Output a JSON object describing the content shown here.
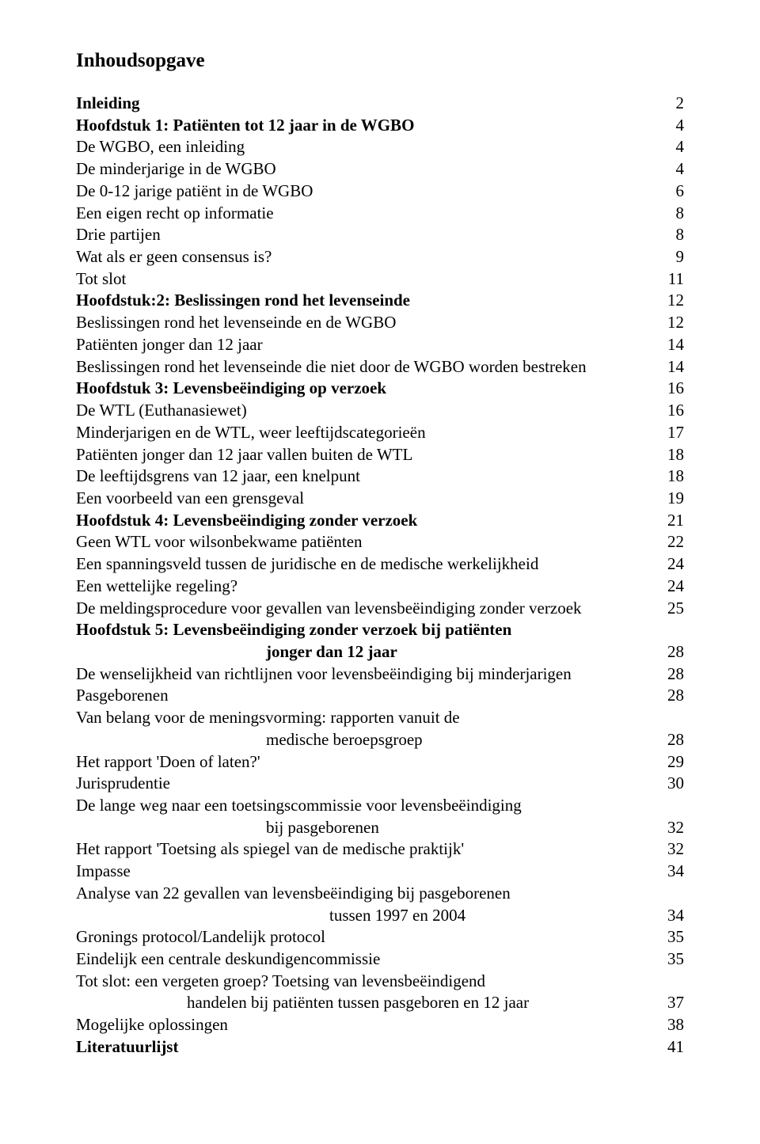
{
  "title": "Inhoudsopgave",
  "entries": [
    {
      "label": "Inleiding",
      "page": "2",
      "bold": true
    },
    {
      "label": "Hoofdstuk 1: Patiënten tot 12 jaar in de WGBO",
      "page": "4",
      "bold": true
    },
    {
      "label": "De WGBO, een inleiding",
      "page": "4"
    },
    {
      "label": "De minderjarige in de WGBO",
      "page": "4"
    },
    {
      "label": "De 0-12 jarige patiënt in de WGBO",
      "page": "6"
    },
    {
      "label": "Een eigen recht op informatie",
      "page": "8"
    },
    {
      "label": "Drie partijen",
      "page": "8"
    },
    {
      "label": "Wat als er geen consensus is?",
      "page": "9"
    },
    {
      "label": "Tot slot",
      "page": "11"
    },
    {
      "label": "Hoofdstuk:2: Beslissingen rond het levenseinde",
      "page": "12",
      "bold": true
    },
    {
      "label": "Beslissingen rond het levenseinde en de WGBO",
      "page": "12"
    },
    {
      "label": "Patiënten jonger dan 12 jaar",
      "page": "14"
    },
    {
      "label": "Beslissingen rond het levenseinde die niet door de WGBO worden bestreken",
      "page": "14"
    },
    {
      "label": "Hoofdstuk 3: Levensbeëindiging op verzoek",
      "page": "16",
      "bold": true
    },
    {
      "label": "De WTL (Euthanasiewet)",
      "page": "16"
    },
    {
      "label": "Minderjarigen en de WTL, weer leeftijdscategorieën",
      "page": "17"
    },
    {
      "label": "Patiënten jonger dan 12 jaar vallen buiten de WTL",
      "page": "18"
    },
    {
      "label": "De leeftijdsgrens van 12 jaar, een knelpunt",
      "page": "18"
    },
    {
      "label": "Een voorbeeld van een grensgeval",
      "page": "19"
    },
    {
      "label": "Hoofdstuk 4: Levensbeëindiging zonder verzoek",
      "page": "21",
      "bold": true
    },
    {
      "label": "Geen WTL voor wilsonbekwame patiënten",
      "page": "22"
    },
    {
      "label": "Een spanningsveld tussen de juridische en de medische werkelijkheid",
      "page": "24"
    },
    {
      "label": "Een wettelijke regeling?",
      "page": "24"
    },
    {
      "label": "De meldingsprocedure voor gevallen van levensbeëindiging zonder verzoek",
      "page": "25"
    },
    {
      "label": "Hoofdstuk 5: Levensbeëindiging zonder verzoek bij patiënten",
      "bold": true,
      "nopage": true
    },
    {
      "label": "jonger dan 12 jaar",
      "page": "28",
      "bold": true,
      "indent": "indent1"
    },
    {
      "label": "De wenselijkheid van richtlijnen voor levensbeëindiging bij minderjarigen",
      "page": "28"
    },
    {
      "label": "Pasgeborenen",
      "page": "28"
    },
    {
      "label": "Van belang voor de meningsvorming: rapporten vanuit de",
      "nopage": true
    },
    {
      "label": "medische beroepsgroep",
      "page": "28",
      "indent": "indent1"
    },
    {
      "label": "Het rapport 'Doen of laten?'",
      "page": "29"
    },
    {
      "label": "Jurisprudentie",
      "page": "30"
    },
    {
      "label": "De lange weg naar een toetsingscommissie voor levensbeëindiging",
      "nopage": true
    },
    {
      "label": "bij pasgeborenen",
      "page": "32",
      "indent": "indent1"
    },
    {
      "label": "Het rapport 'Toetsing als spiegel van de medische praktijk'",
      "page": "32"
    },
    {
      "label": "Impasse",
      "page": "34"
    },
    {
      "label": "Analyse van 22 gevallen van levensbeëindiging bij pasgeborenen",
      "nopage": true
    },
    {
      "label": "tussen 1997 en 2004",
      "page": "34",
      "indent": "indent3"
    },
    {
      "label": "Gronings protocol/Landelijk protocol",
      "page": "35"
    },
    {
      "label": "Eindelijk een centrale deskundigencommissie",
      "page": "35"
    },
    {
      "label": "Tot slot: een vergeten groep? Toetsing van levensbeëindigend",
      "nopage": true
    },
    {
      "label": "handelen bij patiënten tussen pasgeboren en 12 jaar",
      "page": "37",
      "indent": "indent4"
    },
    {
      "label": "Mogelijke oplossingen",
      "page": "38"
    },
    {
      "label": "Literatuurlijst",
      "page": "41",
      "bold": true
    }
  ]
}
